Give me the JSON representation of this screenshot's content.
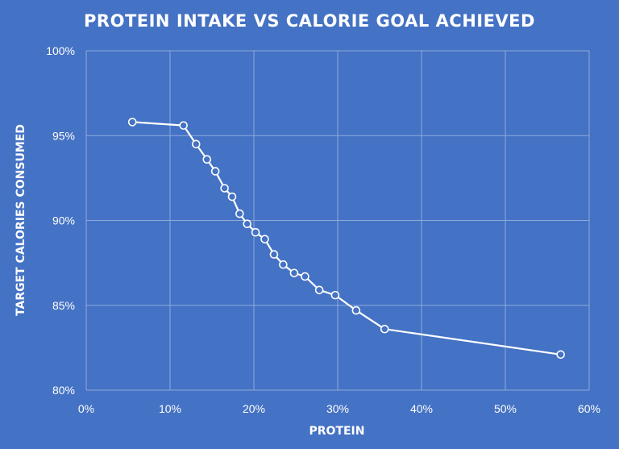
{
  "chart_data": {
    "type": "line",
    "title": "PROTEIN INTAKE VS CALORIE GOAL ACHIEVED",
    "xlabel": "PROTEIN",
    "ylabel": "TARGET CALORIES CONSUMED",
    "xlim": [
      0,
      60
    ],
    "ylim": [
      80,
      100
    ],
    "x_ticks": [
      "0%",
      "10%",
      "20%",
      "30%",
      "40%",
      "50%",
      "60%"
    ],
    "y_ticks": [
      "80%",
      "85%",
      "90%",
      "95%",
      "100%"
    ],
    "grid": true,
    "legend": "none",
    "colors": {
      "background": "#4472c4",
      "series": "#ffffff",
      "grid": "#8ea9dc"
    },
    "series": [
      {
        "x": [
          5.5,
          11.6,
          13.1,
          14.4,
          15.4,
          16.5,
          17.4,
          18.3,
          19.2,
          20.2,
          21.3,
          22.4,
          23.5,
          24.8,
          26.1,
          27.8,
          29.7,
          32.2,
          35.6,
          56.6
        ],
        "y": [
          95.8,
          95.6,
          94.5,
          93.6,
          92.9,
          91.9,
          91.4,
          90.4,
          89.8,
          89.3,
          88.9,
          88.0,
          87.4,
          86.9,
          86.7,
          85.9,
          85.6,
          84.7,
          83.6,
          82.1
        ]
      }
    ]
  }
}
